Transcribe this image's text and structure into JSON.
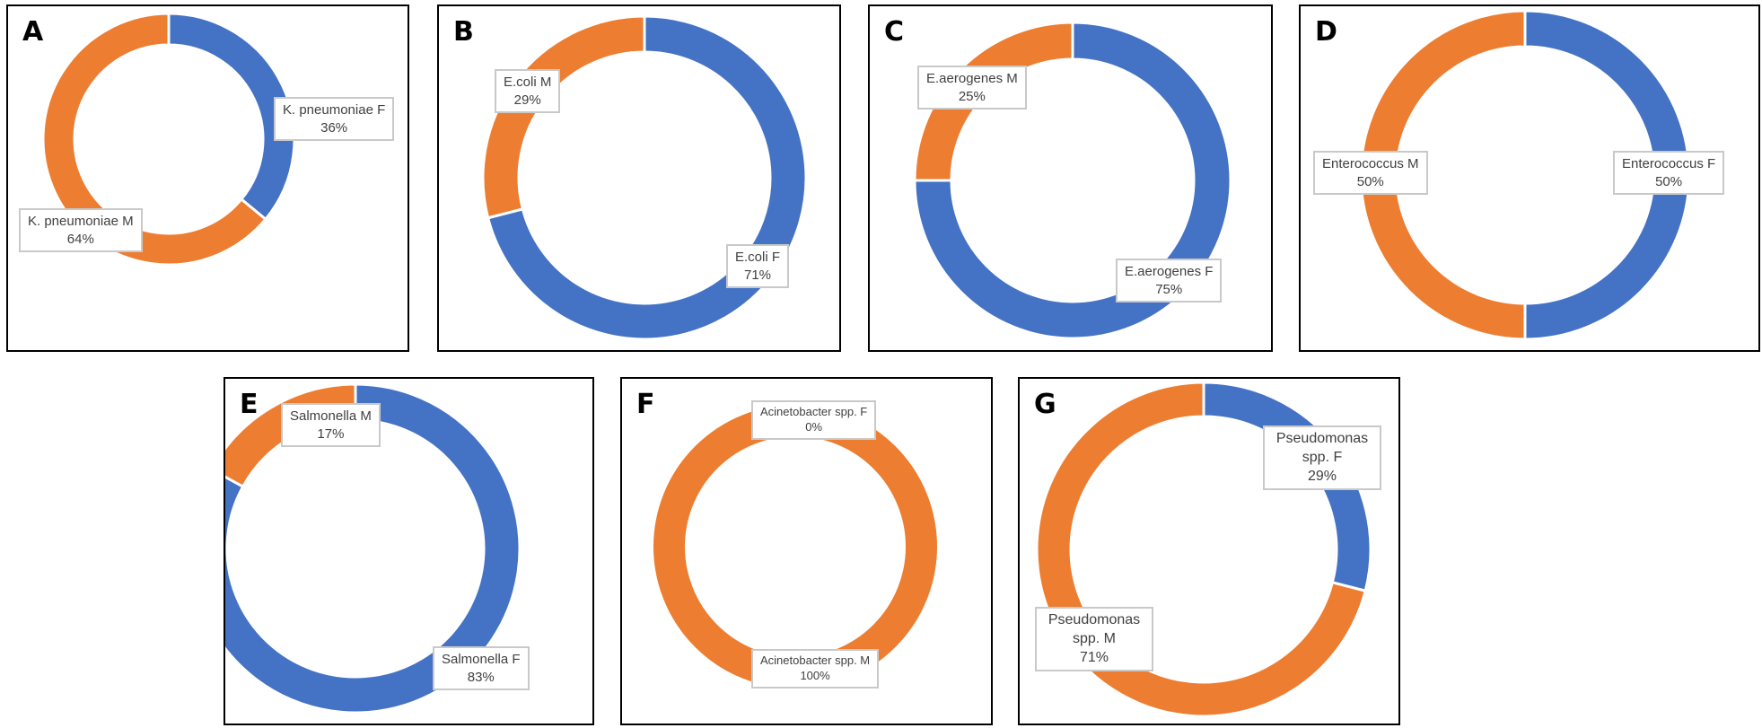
{
  "colors": {
    "F": "#4472C4",
    "M": "#ED7D31"
  },
  "chart_data": [
    {
      "type": "pie",
      "panel": "A",
      "slices": [
        {
          "label": "K. pneumoniae F",
          "value": 36,
          "pct": "36%"
        },
        {
          "label": "K. pneumoniae M",
          "value": 64,
          "pct": "64%"
        }
      ]
    },
    {
      "type": "pie",
      "panel": "B",
      "slices": [
        {
          "label": "E.coli F",
          "value": 71,
          "pct": "71%"
        },
        {
          "label": "E.coli M",
          "value": 29,
          "pct": "29%"
        }
      ]
    },
    {
      "type": "pie",
      "panel": "C",
      "slices": [
        {
          "label": "E.aerogenes F",
          "value": 75,
          "pct": "75%"
        },
        {
          "label": "E.aerogenes M",
          "value": 25,
          "pct": "25%"
        }
      ]
    },
    {
      "type": "pie",
      "panel": "D",
      "slices": [
        {
          "label": "Enterococcus F",
          "value": 50,
          "pct": "50%"
        },
        {
          "label": "Enterococcus M",
          "value": 50,
          "pct": "50%"
        }
      ]
    },
    {
      "type": "pie",
      "panel": "E",
      "slices": [
        {
          "label": "Salmonella F",
          "value": 83,
          "pct": "83%"
        },
        {
          "label": "Salmonella M",
          "value": 17,
          "pct": "17%"
        }
      ]
    },
    {
      "type": "pie",
      "panel": "F",
      "slices": [
        {
          "label": "Acinetobacter spp. F",
          "value": 0,
          "pct": "0%"
        },
        {
          "label": "Acinetobacter spp. M",
          "value": 100,
          "pct": "100%"
        }
      ]
    },
    {
      "type": "pie",
      "panel": "G",
      "slices": [
        {
          "label": "Pseudomonas spp. F",
          "value": 29,
          "pct": "29%"
        },
        {
          "label": "Pseudomonas spp. M",
          "value": 71,
          "pct": "71%"
        }
      ]
    }
  ]
}
